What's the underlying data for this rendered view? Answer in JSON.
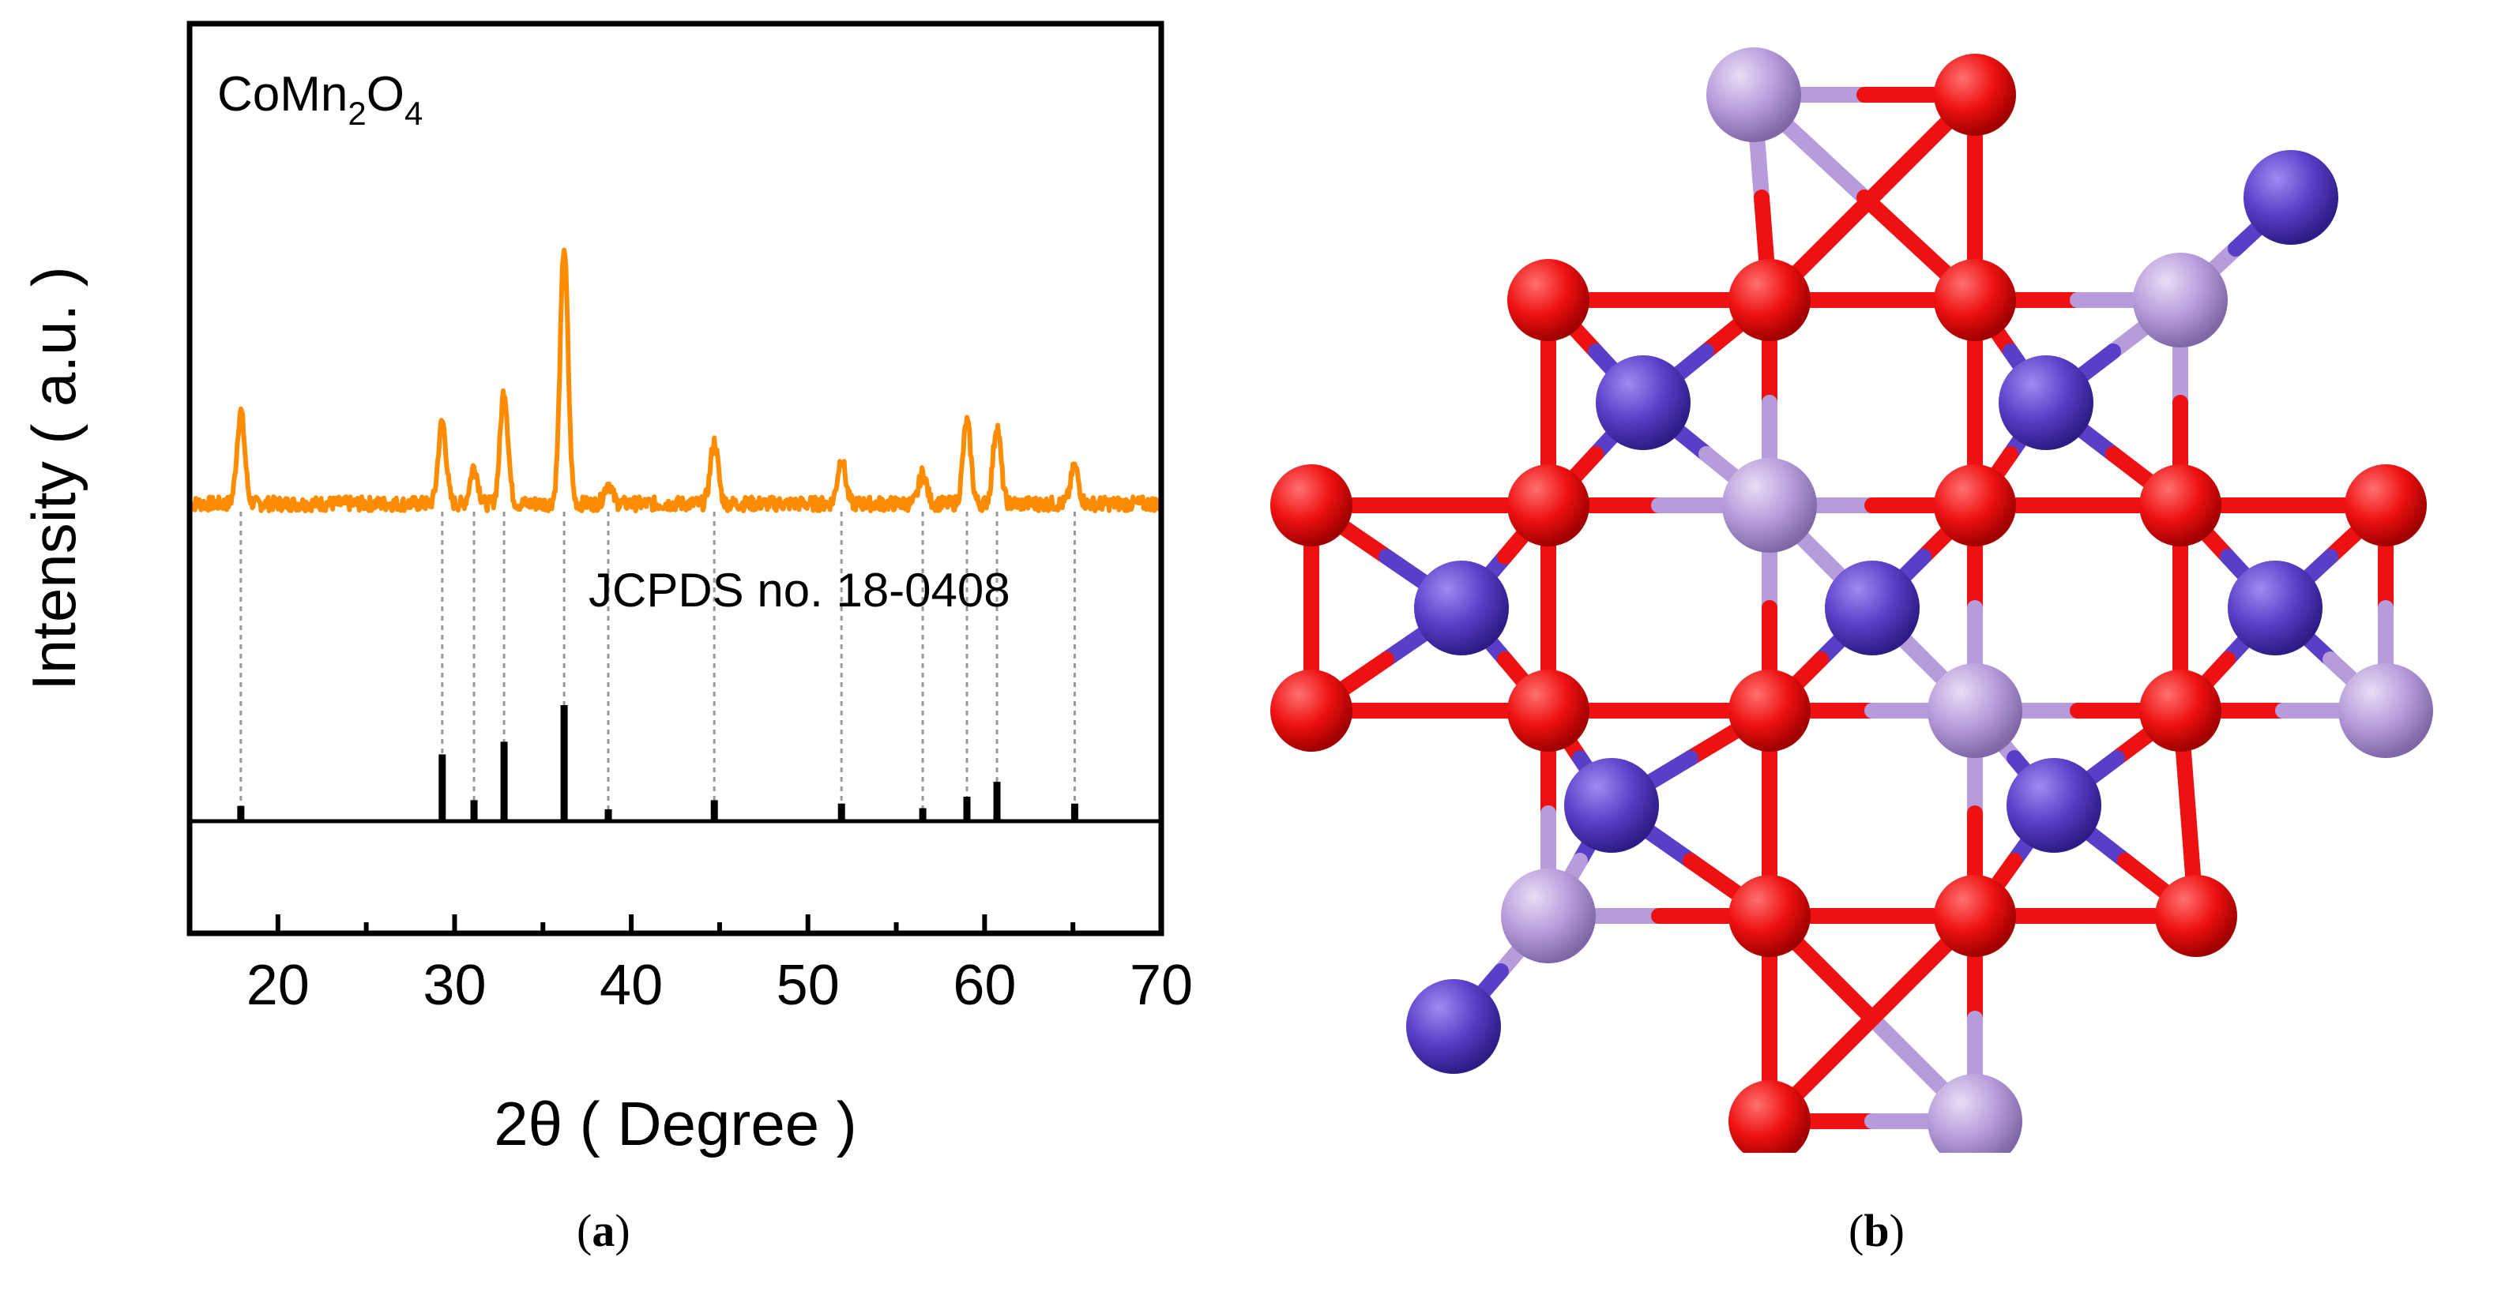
{
  "chart_data": {
    "type": "line",
    "sample_label": {
      "base": "CoMn",
      "sub1": "2",
      "mid": "O",
      "sub2": "4"
    },
    "reference_label": "JCPDS no. 18-0408",
    "xlabel": "2θ ( Degree )",
    "ylabel": "Intensity ( a.u. )",
    "xlim": [
      15,
      70
    ],
    "xticks": [
      20,
      30,
      40,
      50,
      60,
      70
    ],
    "grid": false,
    "series": [
      {
        "color": "#FF8C00",
        "baseline": 1.0,
        "peaks": [
          {
            "x": 17.9,
            "height": 0.45
          },
          {
            "x": 29.3,
            "height": 0.4
          },
          {
            "x": 31.1,
            "height": 0.18
          },
          {
            "x": 32.8,
            "height": 0.55
          },
          {
            "x": 36.2,
            "height": 1.25
          },
          {
            "x": 38.7,
            "height": 0.1
          },
          {
            "x": 44.7,
            "height": 0.3
          },
          {
            "x": 51.9,
            "height": 0.22
          },
          {
            "x": 56.5,
            "height": 0.15
          },
          {
            "x": 59.0,
            "height": 0.4
          },
          {
            "x": 60.7,
            "height": 0.38
          },
          {
            "x": 65.1,
            "height": 0.18
          }
        ]
      }
    ],
    "reference_peaks": [
      {
        "x": 17.9,
        "intensity": 0.12
      },
      {
        "x": 29.3,
        "intensity": 0.57
      },
      {
        "x": 31.1,
        "intensity": 0.17
      },
      {
        "x": 32.8,
        "intensity": 0.68
      },
      {
        "x": 36.2,
        "intensity": 1.0
      },
      {
        "x": 38.7,
        "intensity": 0.09
      },
      {
        "x": 44.7,
        "intensity": 0.17
      },
      {
        "x": 51.9,
        "intensity": 0.14
      },
      {
        "x": 56.5,
        "intensity": 0.1
      },
      {
        "x": 59.0,
        "intensity": 0.2
      },
      {
        "x": 60.7,
        "intensity": 0.33
      },
      {
        "x": 65.1,
        "intensity": 0.14
      }
    ]
  },
  "figure_b": {
    "atom_colors": {
      "Co": "#5A3EC8",
      "Mn": "#B79CDB",
      "O": "#EE1111"
    }
  },
  "captions": {
    "a": "a",
    "b": "b"
  }
}
